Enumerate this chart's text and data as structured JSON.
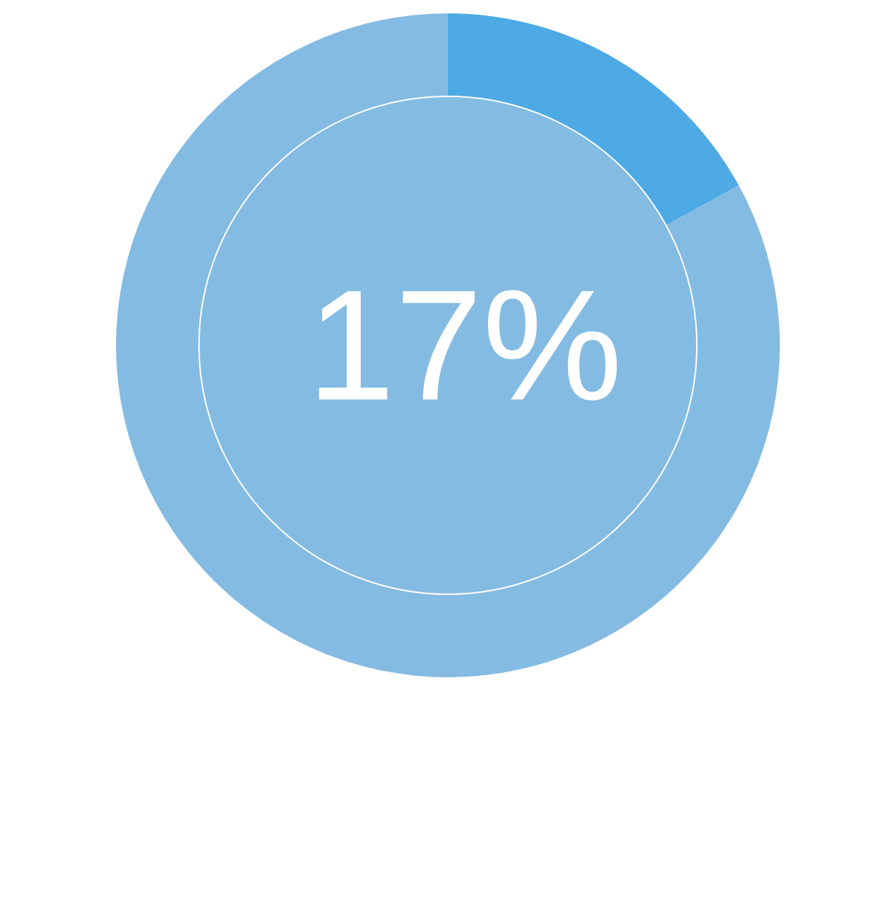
{
  "chart_data": {
    "type": "donut",
    "categories": [
      null,
      null
    ],
    "values": [
      17,
      83
    ],
    "colors": [
      "#4eaae5",
      "#84bbe2"
    ],
    "annotations": [
      "17%"
    ]
  }
}
